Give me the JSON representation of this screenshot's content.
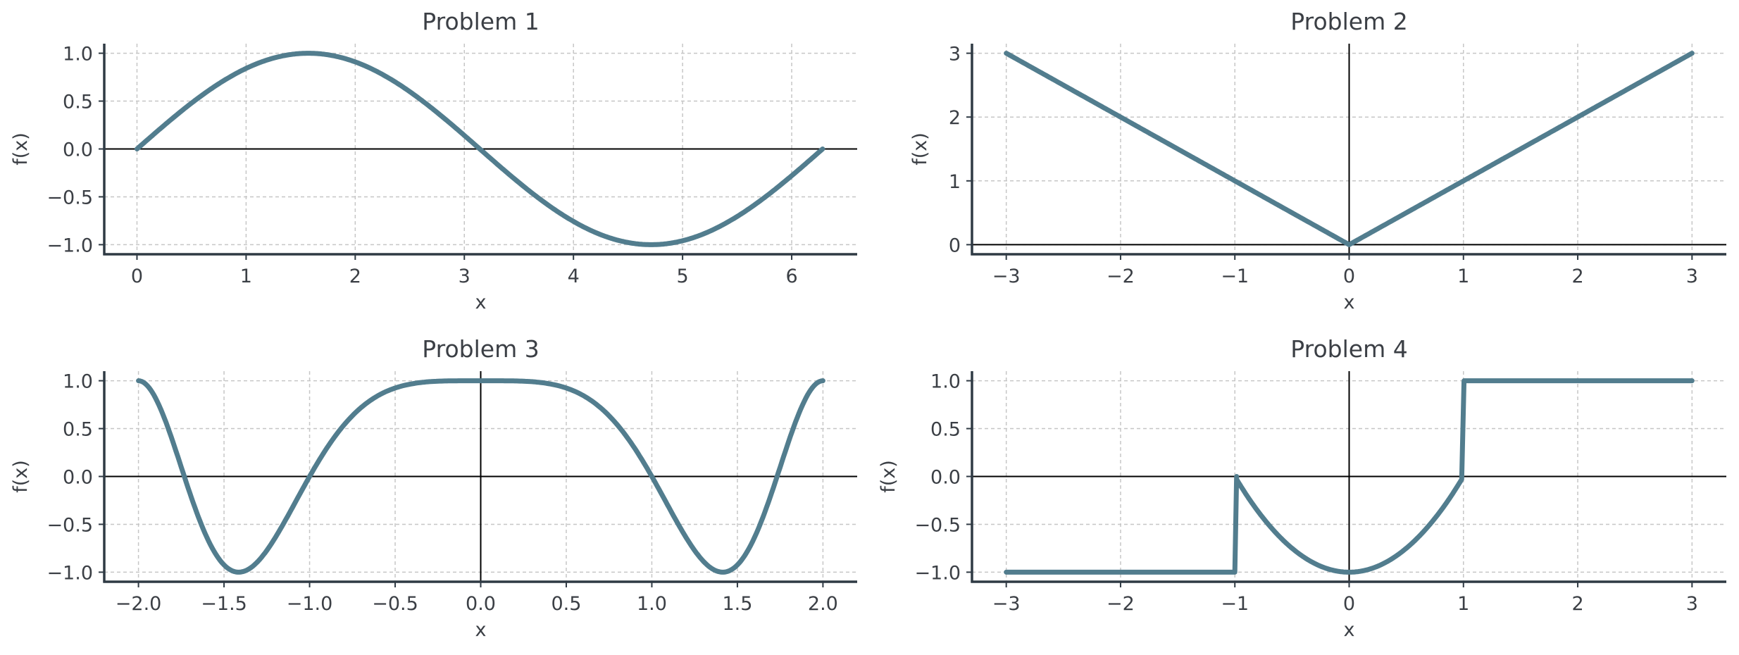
{
  "colors": {
    "line": "#527d8e",
    "text": "#3b3f45",
    "spine": "#2f3a44",
    "grid": "#c6c6c6",
    "zero_line": "#000000"
  },
  "chart_data": [
    {
      "type": "line",
      "title": "Problem 1",
      "xlabel": "x",
      "ylabel": "f(x)",
      "function": "sin(x)",
      "xlim": [
        -0.3,
        6.6
      ],
      "ylim": [
        -1.1,
        1.1
      ],
      "xticks": [
        0,
        1,
        2,
        3,
        4,
        5,
        6
      ],
      "xtick_labels": [
        "0",
        "1",
        "2",
        "3",
        "4",
        "5",
        "6"
      ],
      "yticks": [
        1.0,
        0.5,
        0.0,
        -0.5,
        -1.0
      ],
      "ytick_labels": [
        "1.0",
        "0.5",
        "0.0",
        "−0.5",
        "−1.0"
      ],
      "zero_lines": {
        "horizontal": true,
        "vertical": false
      },
      "grid": true,
      "series": [
        {
          "x": [
            0,
            0.79,
            1.57,
            2.36,
            3.14,
            3.93,
            4.71,
            5.5,
            6.28
          ],
          "y": [
            0,
            0.71,
            1.0,
            0.71,
            0,
            -0.71,
            -1.0,
            -0.71,
            0
          ]
        }
      ]
    },
    {
      "type": "line",
      "title": "Problem 2",
      "xlabel": "x",
      "ylabel": "f(x)",
      "function": "|x|",
      "xlim": [
        -3.3,
        3.3
      ],
      "ylim": [
        -0.15,
        3.15
      ],
      "xticks": [
        -3,
        -2,
        -1,
        0,
        1,
        2,
        3
      ],
      "xtick_labels": [
        "−3",
        "−2",
        "−1",
        "0",
        "1",
        "2",
        "3"
      ],
      "yticks": [
        3,
        2,
        1,
        0
      ],
      "ytick_labels": [
        "3",
        "2",
        "1",
        "0"
      ],
      "zero_lines": {
        "horizontal": true,
        "vertical": true
      },
      "grid": true,
      "series": [
        {
          "x": [
            -3,
            -2,
            -1,
            0,
            1,
            2,
            3
          ],
          "y": [
            3,
            2,
            1,
            0,
            1,
            2,
            3
          ]
        }
      ]
    },
    {
      "type": "line",
      "title": "Problem 3",
      "xlabel": "x",
      "ylabel": "f(x)",
      "function": "cos(pi*x^2/2)",
      "xlim": [
        -2.2,
        2.2
      ],
      "ylim": [
        -1.1,
        1.1
      ],
      "xticks": [
        -2.0,
        -1.5,
        -1.0,
        -0.5,
        0.0,
        0.5,
        1.0,
        1.5,
        2.0
      ],
      "xtick_labels": [
        "−2.0",
        "−1.5",
        "−1.0",
        "−0.5",
        "0.0",
        "0.5",
        "1.0",
        "1.5",
        "2.0"
      ],
      "yticks": [
        1.0,
        0.5,
        0.0,
        -0.5,
        -1.0
      ],
      "ytick_labels": [
        "1.0",
        "0.5",
        "0.0",
        "−0.5",
        "−1.0"
      ],
      "zero_lines": {
        "horizontal": true,
        "vertical": true
      },
      "grid": true,
      "series": [
        {
          "x": [
            -2.0,
            -1.73,
            -1.41,
            -1.0,
            0.0,
            1.0,
            1.41,
            1.73,
            2.0
          ],
          "y": [
            1.0,
            0.0,
            -1.0,
            0.0,
            1.0,
            0.0,
            -1.0,
            0.0,
            1.0
          ]
        }
      ]
    },
    {
      "type": "line",
      "title": "Problem 4",
      "xlabel": "x",
      "ylabel": "f(x)",
      "function": "piecewise: -1 for x<-1; x^2-1 for -1<=x<1; 1 for x>=1",
      "xlim": [
        -3.3,
        3.3
      ],
      "ylim": [
        -1.1,
        1.1
      ],
      "xticks": [
        -3,
        -2,
        -1,
        0,
        1,
        2,
        3
      ],
      "xtick_labels": [
        "−3",
        "−2",
        "−1",
        "0",
        "1",
        "2",
        "3"
      ],
      "yticks": [
        1.0,
        0.5,
        0.0,
        -0.5,
        -1.0
      ],
      "ytick_labels": [
        "1.0",
        "0.5",
        "0.0",
        "−0.5",
        "−1.0"
      ],
      "zero_lines": {
        "horizontal": true,
        "vertical": true
      },
      "grid": true,
      "series": [
        {
          "x": [
            -3,
            -1,
            -1,
            -0.5,
            0,
            0.5,
            1,
            1,
            3
          ],
          "y": [
            -1,
            -1,
            0,
            -0.75,
            -1,
            -0.75,
            0,
            1,
            1
          ]
        }
      ]
    }
  ]
}
